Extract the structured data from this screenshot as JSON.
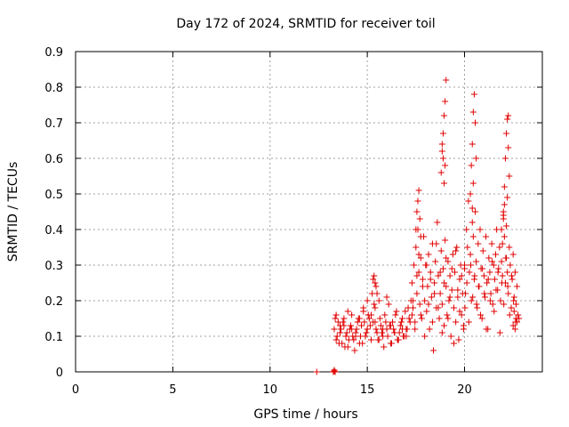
{
  "chart_data": {
    "type": "scatter",
    "title": "Day 172 of 2024, SRMTID for receiver toil",
    "xlabel": "GPS time / hours",
    "ylabel": "SRMTID / TECUs",
    "xlim": [
      0,
      24
    ],
    "ylim": [
      0,
      0.9
    ],
    "xticks": [
      0,
      5,
      10,
      15,
      20
    ],
    "xtick_labels": [
      "0",
      "5",
      "10",
      "15",
      "20"
    ],
    "yticks": [
      0,
      0.1,
      0.2,
      0.3,
      0.4,
      0.5,
      0.6,
      0.7,
      0.8,
      0.9
    ],
    "ytick_labels": [
      "0",
      "0.1",
      "0.2",
      "0.3",
      "0.4",
      "0.5",
      "0.6",
      "0.7",
      "0.8",
      "0.9"
    ],
    "grid": true,
    "marker": "plus",
    "color": "#e00000",
    "series": [
      {
        "name": "SRMTID",
        "x": [
          12.4,
          13.25,
          13.3,
          13.3,
          13.35,
          13.3,
          13.4,
          13.5,
          13.6,
          13.7,
          13.8,
          13.9,
          14.0,
          14.1,
          14.2,
          14.3,
          14.4,
          14.5,
          14.6,
          14.7,
          14.8,
          14.9,
          15.0,
          15.1,
          15.2,
          15.3,
          15.4,
          15.5,
          15.6,
          15.7,
          15.8,
          15.9,
          16.0,
          16.1,
          16.2,
          16.3,
          16.4,
          16.5,
          16.6,
          16.7,
          16.8,
          16.9,
          17.0,
          17.1,
          17.2,
          17.3,
          13.35,
          13.45,
          13.55,
          13.65,
          13.75,
          13.85,
          13.95,
          14.05,
          14.15,
          14.25,
          14.35,
          14.45,
          14.55,
          14.65,
          14.75,
          14.85,
          14.95,
          15.05,
          15.15,
          15.25,
          15.35,
          15.45,
          15.55,
          15.65,
          15.75,
          15.85,
          15.95,
          16.05,
          16.15,
          16.25,
          16.35,
          16.45,
          16.55,
          16.65,
          16.75,
          16.85,
          16.95,
          17.05,
          17.15,
          17.25,
          13.4,
          13.6,
          13.8,
          14.0,
          14.2,
          14.4,
          14.6,
          14.8,
          15.0,
          15.2,
          15.4,
          15.6,
          15.8,
          16.0,
          16.2,
          16.4,
          16.6,
          16.8,
          17.0,
          15.3,
          15.35,
          15.4,
          15.45,
          15.5,
          17.3,
          17.35,
          17.4,
          17.45,
          17.5,
          17.55,
          17.6,
          17.65,
          17.7,
          17.75,
          17.8,
          17.85,
          17.9,
          17.95,
          18.0,
          18.05,
          18.1,
          18.15,
          18.2,
          18.25,
          18.3,
          18.35,
          18.4,
          18.45,
          18.5,
          18.55,
          18.6,
          18.65,
          18.7,
          18.75,
          18.8,
          18.85,
          18.9,
          18.95,
          19.0,
          19.05,
          19.1,
          19.15,
          19.2,
          19.25,
          19.3,
          19.35,
          19.4,
          19.45,
          19.5,
          19.55,
          19.6,
          19.65,
          19.7,
          19.75,
          19.8,
          19.85,
          19.9,
          19.95,
          20.0,
          17.35,
          17.45,
          17.55,
          17.65,
          17.75,
          17.85,
          17.95,
          18.05,
          18.15,
          18.25,
          18.35,
          18.45,
          18.55,
          18.65,
          18.75,
          18.85,
          18.95,
          19.05,
          19.15,
          19.25,
          19.35,
          19.45,
          19.55,
          19.65,
          19.75,
          19.85,
          19.95,
          17.5,
          17.55,
          17.6,
          17.65,
          17.7,
          17.75,
          18.8,
          18.85,
          18.9,
          18.95,
          19.0,
          19.05,
          19.0,
          18.95,
          18.9,
          18.85,
          20.0,
          20.05,
          20.1,
          20.15,
          20.2,
          20.25,
          20.3,
          20.35,
          20.4,
          20.45,
          20.5,
          20.55,
          20.6,
          20.65,
          20.7,
          20.75,
          20.8,
          20.85,
          20.9,
          20.95,
          21.0,
          21.05,
          21.1,
          21.15,
          21.2,
          21.25,
          21.3,
          21.35,
          21.4,
          21.45,
          21.5,
          21.55,
          21.6,
          21.65,
          21.7,
          21.75,
          21.8,
          21.85,
          21.9,
          21.95,
          22.0,
          22.05,
          22.1,
          22.15,
          22.2,
          22.25,
          22.3,
          22.35,
          22.4,
          22.45,
          22.5,
          22.55,
          22.6,
          22.65,
          22.7,
          20.02,
          20.12,
          20.22,
          20.32,
          20.42,
          20.52,
          20.62,
          20.72,
          20.82,
          20.92,
          21.02,
          21.12,
          21.22,
          21.32,
          21.42,
          21.52,
          21.62,
          21.72,
          21.82,
          21.92,
          22.02,
          22.12,
          22.22,
          22.32,
          22.42,
          22.52,
          22.62,
          20.3,
          20.35,
          20.4,
          20.45,
          20.5,
          20.55,
          20.6,
          20.4,
          20.45,
          22.0,
          22.05,
          22.1,
          22.15,
          22.2,
          22.25,
          22.3,
          22.2,
          22.15,
          22.25,
          21.9,
          21.95,
          22.0,
          22.05,
          22.5,
          22.55,
          22.6,
          22.65,
          22.7,
          22.75,
          22.8
        ],
        "y": [
          0.0,
          0.0,
          0.005,
          0.002,
          0.0,
          0.12,
          0.09,
          0.14,
          0.11,
          0.08,
          0.13,
          0.1,
          0.07,
          0.12,
          0.16,
          0.09,
          0.11,
          0.14,
          0.08,
          0.13,
          0.17,
          0.1,
          0.12,
          0.15,
          0.09,
          0.14,
          0.18,
          0.11,
          0.2,
          0.13,
          0.1,
          0.16,
          0.12,
          0.19,
          0.08,
          0.14,
          0.11,
          0.17,
          0.09,
          0.13,
          0.15,
          0.1,
          0.12,
          0.18,
          0.14,
          0.16,
          0.15,
          0.1,
          0.08,
          0.12,
          0.14,
          0.07,
          0.11,
          0.09,
          0.13,
          0.1,
          0.06,
          0.12,
          0.15,
          0.1,
          0.08,
          0.14,
          0.11,
          0.16,
          0.13,
          0.22,
          0.19,
          0.12,
          0.09,
          0.15,
          0.11,
          0.07,
          0.14,
          0.1,
          0.13,
          0.08,
          0.12,
          0.16,
          0.09,
          0.11,
          0.14,
          0.1,
          0.17,
          0.12,
          0.15,
          0.2,
          0.16,
          0.13,
          0.15,
          0.17,
          0.12,
          0.1,
          0.15,
          0.18,
          0.2,
          0.16,
          0.14,
          0.09,
          0.12,
          0.21,
          0.13,
          0.11,
          0.09,
          0.12,
          0.1,
          0.26,
          0.27,
          0.25,
          0.24,
          0.22,
          0.25,
          0.18,
          0.3,
          0.14,
          0.35,
          0.22,
          0.4,
          0.28,
          0.19,
          0.32,
          0.15,
          0.26,
          0.38,
          0.2,
          0.3,
          0.17,
          0.24,
          0.33,
          0.12,
          0.28,
          0.21,
          0.36,
          0.06,
          0.25,
          0.31,
          0.18,
          0.42,
          0.27,
          0.15,
          0.22,
          0.34,
          0.19,
          0.29,
          0.13,
          0.37,
          0.24,
          0.16,
          0.31,
          0.2,
          0.27,
          0.1,
          0.23,
          0.33,
          0.18,
          0.28,
          0.14,
          0.35,
          0.21,
          0.09,
          0.26,
          0.3,
          0.16,
          0.22,
          0.12,
          0.29,
          0.2,
          0.12,
          0.27,
          0.33,
          0.16,
          0.24,
          0.1,
          0.3,
          0.19,
          0.26,
          0.14,
          0.22,
          0.36,
          0.18,
          0.28,
          0.11,
          0.25,
          0.32,
          0.15,
          0.21,
          0.29,
          0.08,
          0.34,
          0.23,
          0.17,
          0.27,
          0.13,
          0.4,
          0.45,
          0.48,
          0.51,
          0.43,
          0.38,
          0.56,
          0.62,
          0.67,
          0.72,
          0.76,
          0.82,
          0.58,
          0.53,
          0.6,
          0.64,
          0.3,
          0.22,
          0.4,
          0.35,
          0.48,
          0.28,
          0.33,
          0.2,
          0.42,
          0.38,
          0.26,
          0.45,
          0.31,
          0.18,
          0.36,
          0.24,
          0.4,
          0.29,
          0.15,
          0.34,
          0.27,
          0.21,
          0.38,
          0.25,
          0.12,
          0.32,
          0.28,
          0.22,
          0.36,
          0.19,
          0.3,
          0.26,
          0.33,
          0.4,
          0.23,
          0.29,
          0.35,
          0.2,
          0.31,
          0.27,
          0.44,
          0.38,
          0.25,
          0.32,
          0.28,
          0.22,
          0.35,
          0.3,
          0.18,
          0.26,
          0.33,
          0.21,
          0.28,
          0.15,
          0.24,
          0.18,
          0.25,
          0.14,
          0.3,
          0.21,
          0.27,
          0.19,
          0.24,
          0.16,
          0.29,
          0.22,
          0.12,
          0.26,
          0.2,
          0.31,
          0.17,
          0.23,
          0.28,
          0.11,
          0.25,
          0.19,
          0.32,
          0.24,
          0.16,
          0.27,
          0.2,
          0.14,
          0.5,
          0.58,
          0.64,
          0.73,
          0.78,
          0.7,
          0.6,
          0.46,
          0.53,
          0.45,
          0.52,
          0.6,
          0.67,
          0.71,
          0.72,
          0.55,
          0.49,
          0.41,
          0.63,
          0.4,
          0.36,
          0.43,
          0.47,
          0.13,
          0.17,
          0.12,
          0.19,
          0.14,
          0.16,
          0.15
        ]
      }
    ]
  }
}
